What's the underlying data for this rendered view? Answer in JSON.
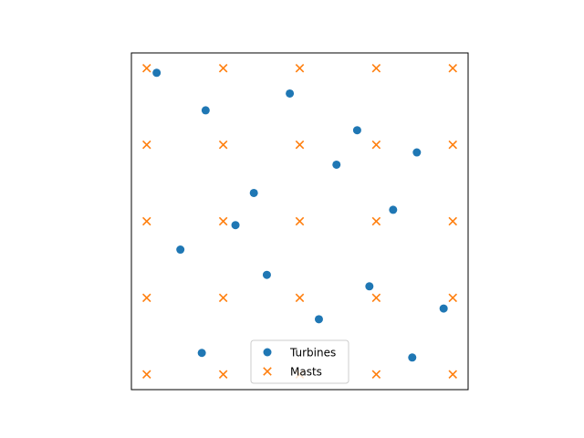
{
  "chart_data": {
    "type": "scatter",
    "title": "",
    "xlabel": "",
    "ylabel": "",
    "xlim": [
      -0.2,
      4.2
    ],
    "ylim": [
      -0.2,
      4.2
    ],
    "axis_ticks": "hidden",
    "grid": false,
    "aspect": "equal",
    "legend": {
      "position": "lower-center"
    },
    "series": [
      {
        "name": "Turbines",
        "marker": "circle",
        "color": "#1f77b4",
        "points": [
          {
            "x": 0.13,
            "y": 3.94
          },
          {
            "x": 0.77,
            "y": 3.45
          },
          {
            "x": 1.87,
            "y": 3.67
          },
          {
            "x": 2.75,
            "y": 3.19
          },
          {
            "x": 3.53,
            "y": 2.9
          },
          {
            "x": 2.48,
            "y": 2.74
          },
          {
            "x": 1.4,
            "y": 2.37
          },
          {
            "x": 3.22,
            "y": 2.15
          },
          {
            "x": 1.16,
            "y": 1.95
          },
          {
            "x": 0.44,
            "y": 1.63
          },
          {
            "x": 1.57,
            "y": 1.3
          },
          {
            "x": 2.91,
            "y": 1.15
          },
          {
            "x": 3.88,
            "y": 0.86
          },
          {
            "x": 2.25,
            "y": 0.72
          },
          {
            "x": 0.72,
            "y": 0.28
          },
          {
            "x": 3.47,
            "y": 0.22
          }
        ]
      },
      {
        "name": "Masts",
        "marker": "x",
        "color": "#ff7f0e",
        "points": [
          {
            "x": 0,
            "y": 4
          },
          {
            "x": 1,
            "y": 4
          },
          {
            "x": 2,
            "y": 4
          },
          {
            "x": 3,
            "y": 4
          },
          {
            "x": 4,
            "y": 4
          },
          {
            "x": 0,
            "y": 3
          },
          {
            "x": 1,
            "y": 3
          },
          {
            "x": 2,
            "y": 3
          },
          {
            "x": 3,
            "y": 3
          },
          {
            "x": 4,
            "y": 3
          },
          {
            "x": 0,
            "y": 2
          },
          {
            "x": 1,
            "y": 2
          },
          {
            "x": 2,
            "y": 2
          },
          {
            "x": 3,
            "y": 2
          },
          {
            "x": 4,
            "y": 2
          },
          {
            "x": 0,
            "y": 1
          },
          {
            "x": 1,
            "y": 1
          },
          {
            "x": 2,
            "y": 1
          },
          {
            "x": 3,
            "y": 1
          },
          {
            "x": 4,
            "y": 1
          },
          {
            "x": 0,
            "y": 0
          },
          {
            "x": 1,
            "y": 0
          },
          {
            "x": 2,
            "y": 0
          },
          {
            "x": 3,
            "y": 0
          },
          {
            "x": 4,
            "y": 0
          }
        ]
      }
    ]
  }
}
